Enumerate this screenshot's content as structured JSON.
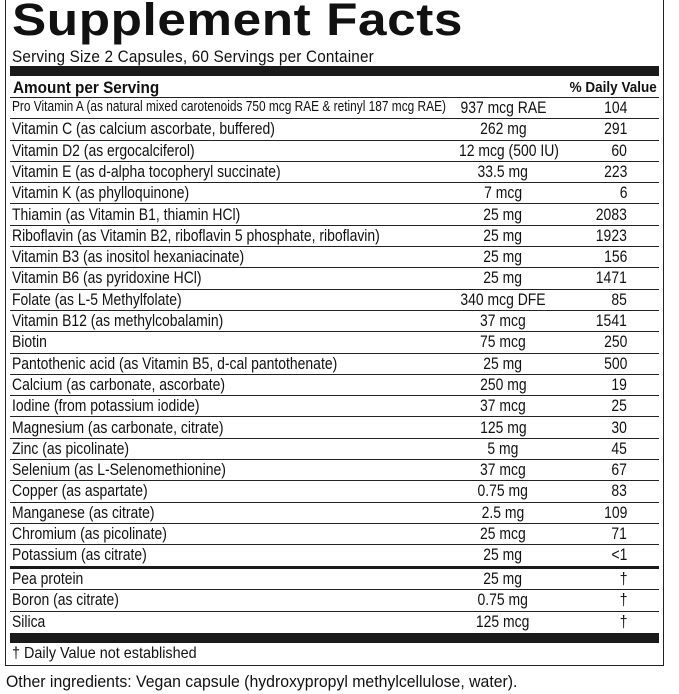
{
  "header": {
    "title": "Supplement Facts",
    "serving": "Serving Size 2 Capsules, 60 Servings per Container"
  },
  "table": {
    "columns": [
      "Amount per Serving",
      "% Daily Value"
    ],
    "rows": [
      [
        "Pro Vitamin A (as natural mixed carotenoids 750 mcg RAE & retinyl 187 mcg RAE)",
        "937 mcg RAE",
        "104"
      ],
      [
        "Vitamin C (as calcium ascorbate, buffered)",
        "262 mg",
        "291"
      ],
      [
        "Vitamin D2 (as ergocalciferol)",
        "12 mcg (500 IU)",
        "60"
      ],
      [
        "Vitamin E (as d-alpha tocopheryl succinate)",
        "33.5 mg",
        "223"
      ],
      [
        "Vitamin K (as phylloquinone)",
        "7 mcg",
        "6"
      ],
      [
        "Thiamin (as Vitamin B1, thiamin HCl)",
        "25 mg",
        "2083"
      ],
      [
        "Riboflavin (as Vitamin B2, riboflavin 5 phosphate, riboflavin)",
        "25 mg",
        "1923"
      ],
      [
        "Vitamin B3 (as inositol hexaniacinate)",
        "25 mg",
        "156"
      ],
      [
        "Vitamin B6 (as pyridoxine HCl)",
        "25 mg",
        "1471"
      ],
      [
        "Folate (as L-5 Methylfolate)",
        "340 mcg DFE",
        "85"
      ],
      [
        "Vitamin B12 (as methylcobalamin)",
        "37 mcg",
        "1541"
      ],
      [
        "Biotin",
        "75 mcg",
        "250"
      ],
      [
        "Pantothenic acid (as Vitamin B5, d-cal pantothenate)",
        "25 mg",
        "500"
      ],
      [
        "Calcium (as carbonate, ascorbate)",
        "250 mg",
        "19"
      ],
      [
        "Iodine (from potassium iodide)",
        "37 mcg",
        "25"
      ],
      [
        "Magnesium (as carbonate, citrate)",
        "125 mg",
        "30"
      ],
      [
        "Zinc (as picolinate)",
        "5 mg",
        "45"
      ],
      [
        "Selenium (as L-Selenomethionine)",
        "37 mcg",
        "67"
      ],
      [
        "Copper (as aspartate)",
        "0.75 mg",
        "83"
      ],
      [
        "Manganese (as citrate)",
        "2.5 mg",
        "109"
      ],
      [
        "Chromium (as picolinate)",
        "25 mcg",
        "71"
      ],
      [
        "Potassium (as citrate)",
        "25 mg",
        "<1"
      ]
    ],
    "other_rows": [
      [
        "Pea protein",
        "25 mg",
        "†"
      ],
      [
        "Boron (as citrate)",
        "0.75 mg",
        "†"
      ],
      [
        "Silica",
        "125 mcg",
        "†"
      ]
    ]
  },
  "footnote": "† Daily Value not established",
  "other_ingredients": "Other ingredients: Vegan capsule (hydroxypropyl methylcellulose, water)."
}
